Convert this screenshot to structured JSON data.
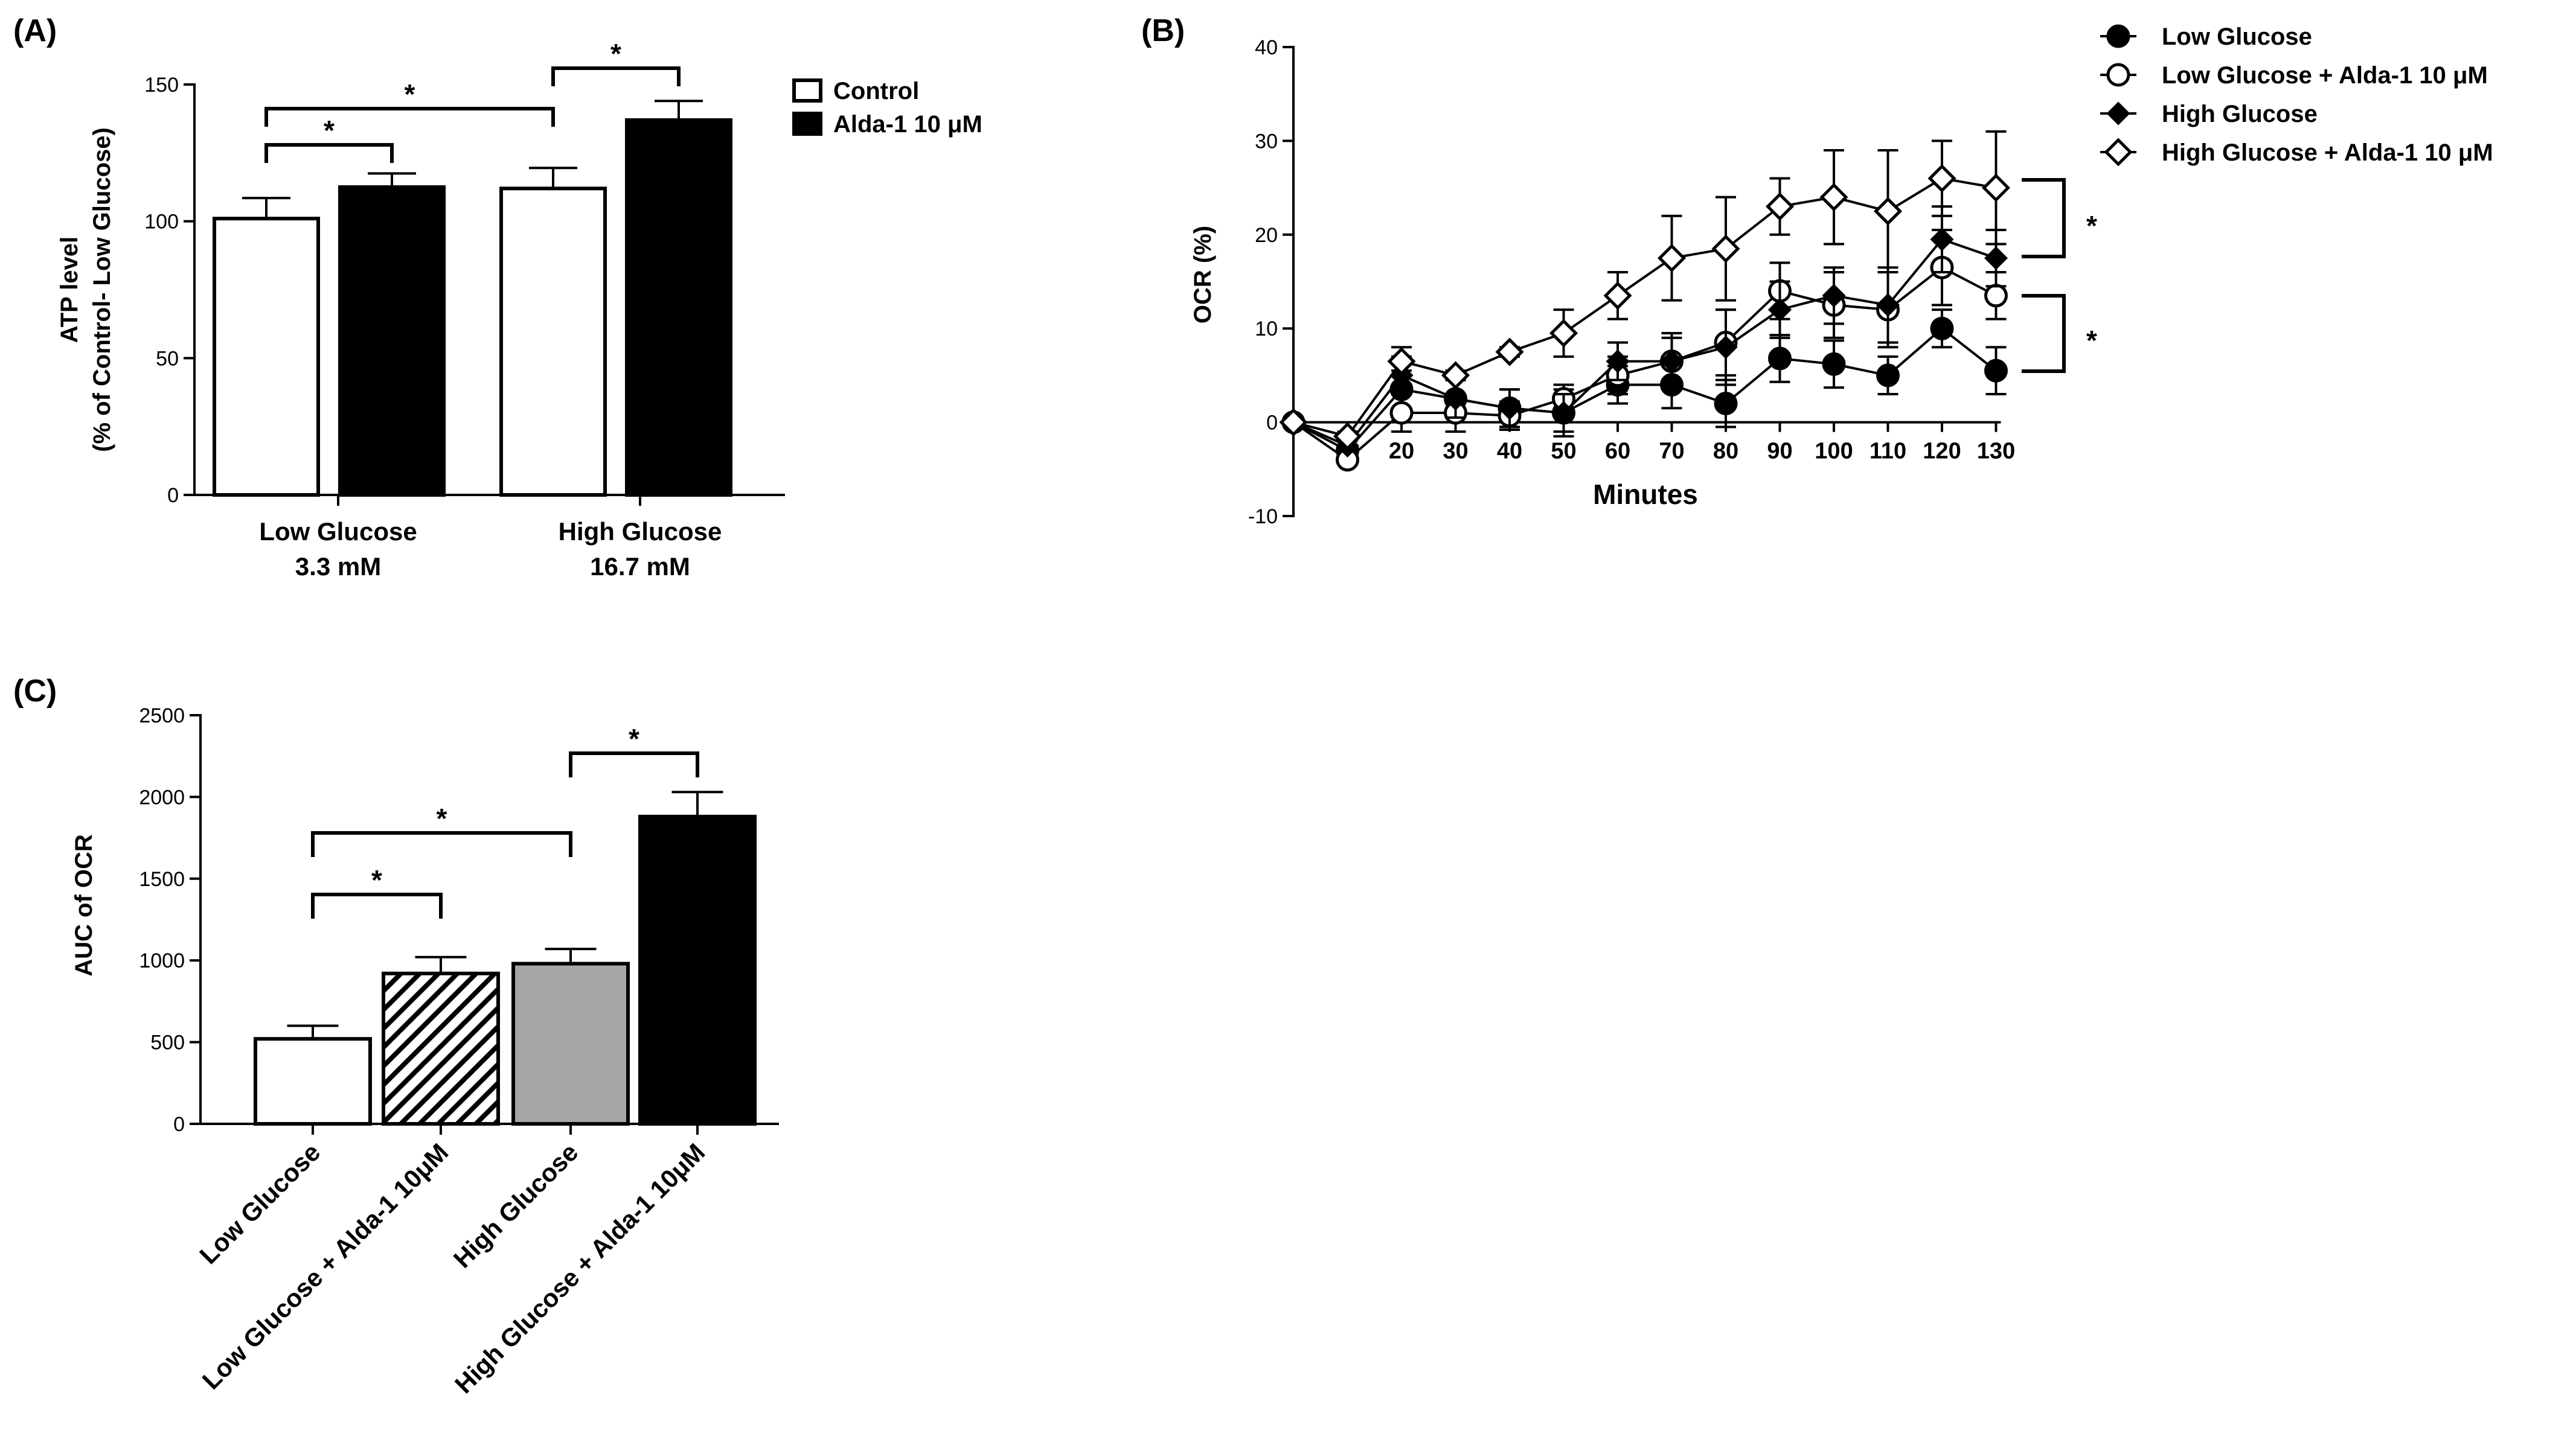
{
  "chart_data": [
    {
      "panel": "(A)",
      "type": "bar",
      "ylabel": "ATP level",
      "ylabel2": "(% of Control- Low Glucose)",
      "ylim": [
        0,
        150
      ],
      "yticks": [
        0,
        50,
        100,
        150
      ],
      "categories": [
        "Low Glucose 3.3 mM",
        "High Glucose 16.7 mM"
      ],
      "category_lines": [
        [
          "Low Glucose",
          "3.3 mM"
        ],
        [
          "High Glucose",
          "16.7 mM"
        ]
      ],
      "series": [
        {
          "name": "Control",
          "values": [
            101,
            112
          ],
          "errors": [
            7.5,
            7.5
          ],
          "fill": "#ffffff"
        },
        {
          "name": "Alda-1 10 μM",
          "values": [
            112.5,
            137
          ],
          "errors": [
            5,
            7
          ],
          "fill": "#000000"
        }
      ],
      "significance": [
        "*",
        "*",
        "*"
      ]
    },
    {
      "panel": "(B)",
      "type": "line",
      "xlabel": "Minutes",
      "ylabel": "OCR (%)",
      "ylim": [
        -10,
        40
      ],
      "yticks": [
        -10,
        0,
        10,
        20,
        30,
        40
      ],
      "xticks": [
        20,
        30,
        40,
        50,
        60,
        70,
        80,
        90,
        100,
        110,
        120,
        130
      ],
      "x": [
        0,
        10,
        20,
        30,
        40,
        50,
        60,
        70,
        80,
        90,
        100,
        110,
        120,
        130
      ],
      "series": [
        {
          "name": "Low Glucose",
          "marker": "circle-filled",
          "values": [
            0,
            -3,
            3.5,
            2.5,
            1.5,
            1,
            4,
            4,
            2,
            6.8,
            6.2,
            5,
            10,
            5.5
          ],
          "errors": [
            0,
            0.5,
            2,
            2,
            2,
            2.5,
            2,
            2.5,
            2.5,
            2.5,
            2.5,
            2,
            2,
            2.5
          ]
        },
        {
          "name": "Low Glucose + Alda-1 10 μM",
          "marker": "circle-open",
          "values": [
            0,
            -4,
            1,
            1,
            0.7,
            2.5,
            5,
            6.5,
            8.5,
            14,
            12.5,
            12,
            16.5,
            13.5
          ],
          "errors": [
            0,
            0.5,
            2,
            2,
            1.5,
            1.5,
            2,
            2.5,
            3.5,
            3,
            3.5,
            4,
            4,
            2.5
          ]
        },
        {
          "name": "High Glucose",
          "marker": "diamond-filled",
          "values": [
            0,
            -2.5,
            5,
            2.5,
            1.5,
            1,
            6.5,
            6.5,
            8,
            12,
            13.5,
            12.5,
            19.5,
            17.5
          ],
          "errors": [
            0,
            0.5,
            2,
            2,
            2,
            2,
            2,
            3,
            4,
            3,
            3,
            4,
            3.5,
            3
          ]
        },
        {
          "name": "High Glucose + Alda-1 10 μM",
          "marker": "diamond-open",
          "values": [
            0,
            -1.5,
            6.5,
            5,
            7.5,
            9.5,
            13.5,
            17.5,
            18.5,
            23,
            24,
            22.5,
            26,
            25
          ],
          "errors": [
            0,
            0.5,
            1.5,
            0.5,
            0.5,
            2.5,
            2.5,
            4.5,
            5.5,
            3,
            5,
            6.5,
            4,
            6
          ]
        }
      ],
      "significance": [
        "*",
        "*"
      ]
    },
    {
      "panel": "(C)",
      "type": "bar",
      "ylabel": "AUC of OCR",
      "ylim": [
        0,
        2500
      ],
      "yticks": [
        0,
        500,
        1000,
        1500,
        2000,
        2500
      ],
      "categories": [
        "Low Glucose",
        "Low Glucose + Alda-1 10μM",
        "High Glucose",
        "High Glucose + Alda-1 10μM"
      ],
      "values": [
        520,
        920,
        980,
        1880
      ],
      "errors": [
        80,
        100,
        90,
        150
      ],
      "fills": [
        "#ffffff",
        "hatch",
        "#a6a6a6",
        "#000000"
      ],
      "significance": [
        "*",
        "*",
        "*"
      ]
    }
  ]
}
